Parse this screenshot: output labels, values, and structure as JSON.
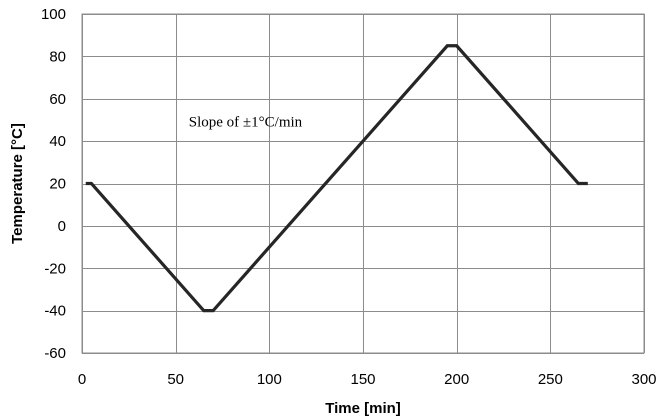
{
  "chart_data": {
    "type": "line",
    "title": "",
    "xlabel": "Time [min]",
    "ylabel": "Temperature [°C]",
    "xlim": [
      0,
      300
    ],
    "ylim": [
      -60,
      100
    ],
    "x_ticks": [
      0,
      50,
      100,
      150,
      200,
      250,
      300
    ],
    "y_ticks": [
      -60,
      -40,
      -20,
      0,
      20,
      40,
      60,
      80,
      100
    ],
    "grid": true,
    "legend": "none",
    "series": [
      {
        "color": "#262626",
        "points": [
          {
            "x": 2,
            "y": 20
          },
          {
            "x": 5,
            "y": 20
          },
          {
            "x": 65,
            "y": -40
          },
          {
            "x": 70,
            "y": -40
          },
          {
            "x": 195,
            "y": 85
          },
          {
            "x": 200,
            "y": 85
          },
          {
            "x": 265,
            "y": 20
          },
          {
            "x": 270,
            "y": 20
          }
        ]
      }
    ],
    "annotations": [
      {
        "text": "Slope of ±1°C/min",
        "x": 57,
        "y": 47
      }
    ]
  }
}
